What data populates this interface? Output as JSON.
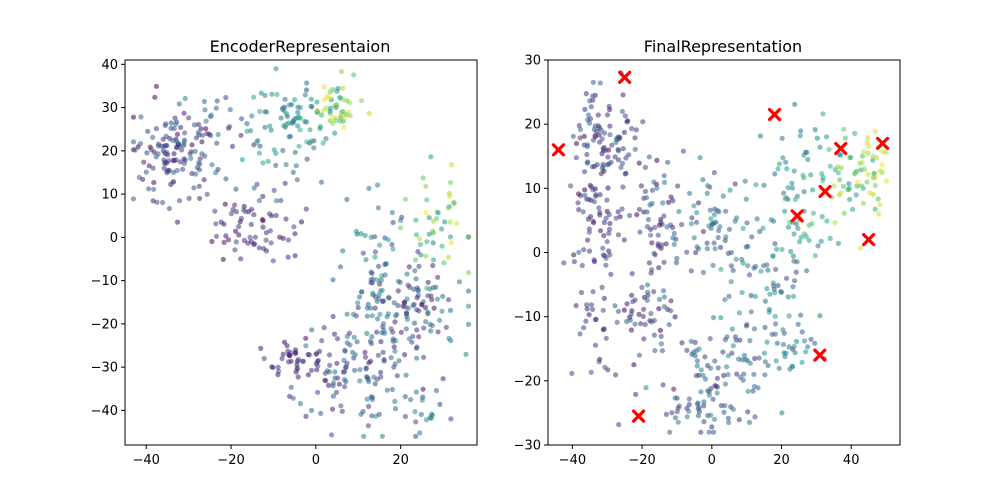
{
  "chart_data": [
    {
      "type": "scatter",
      "title": "EncoderRepresentaion",
      "xlim": [
        -45,
        38
      ],
      "ylim": [
        -48,
        41
      ],
      "xticks": [
        -40,
        -20,
        0,
        20
      ],
      "yticks": [
        -40,
        -30,
        -20,
        -10,
        0,
        10,
        20,
        30,
        40
      ],
      "grid": false,
      "colormap": "viridis",
      "color_range": [
        0,
        1
      ],
      "opacity": 0.55,
      "clusters": [
        {
          "cx": -34,
          "cy": 18,
          "sx": 5,
          "sy": 6,
          "n": 110,
          "c": [
            0.0,
            0.35
          ]
        },
        {
          "cx": -25,
          "cy": 25,
          "sx": 5,
          "sy": 4,
          "n": 40,
          "c": [
            0.1,
            0.45
          ]
        },
        {
          "cx": -15,
          "cy": 3,
          "sx": 5,
          "sy": 4,
          "n": 65,
          "c": [
            0.0,
            0.25
          ]
        },
        {
          "cx": -10,
          "cy": 22,
          "sx": 5,
          "sy": 7,
          "n": 55,
          "c": [
            0.2,
            0.65
          ]
        },
        {
          "cx": -4,
          "cy": 28,
          "sx": 4,
          "sy": 4,
          "n": 40,
          "c": [
            0.35,
            0.7
          ]
        },
        {
          "cx": 5,
          "cy": 31,
          "sx": 3,
          "sy": 3,
          "n": 45,
          "c": [
            0.5,
            1.0
          ]
        },
        {
          "cx": 20,
          "cy": -18,
          "sx": 7,
          "sy": 7,
          "n": 150,
          "c": [
            0.05,
            0.5
          ]
        },
        {
          "cx": 5,
          "cy": -32,
          "sx": 7,
          "sy": 5,
          "n": 90,
          "c": [
            0.05,
            0.45
          ]
        },
        {
          "cx": -6,
          "cy": -28,
          "sx": 3,
          "sy": 3,
          "n": 30,
          "c": [
            0.0,
            0.25
          ]
        },
        {
          "cx": 14,
          "cy": -3,
          "sx": 4,
          "sy": 6,
          "n": 40,
          "c": [
            0.2,
            0.6
          ]
        },
        {
          "cx": 28,
          "cy": 2,
          "sx": 4,
          "sy": 6,
          "n": 45,
          "c": [
            0.45,
            1.0
          ]
        },
        {
          "cx": 22,
          "cy": -40,
          "sx": 6,
          "sy": 3,
          "n": 30,
          "c": [
            0.2,
            0.55
          ]
        }
      ],
      "seed": 17,
      "markers": []
    },
    {
      "type": "scatter",
      "title": "FinalRepresentation",
      "xlim": [
        -47,
        54
      ],
      "ylim": [
        -30,
        30
      ],
      "xticks": [
        -40,
        -20,
        0,
        20,
        40
      ],
      "yticks": [
        -30,
        -20,
        -10,
        0,
        10,
        20,
        30
      ],
      "grid": false,
      "colormap": "viridis",
      "color_range": [
        0,
        1
      ],
      "opacity": 0.55,
      "clusters": [
        {
          "cx": -32,
          "cy": 18,
          "sx": 5,
          "sy": 4,
          "n": 90,
          "c": [
            0.0,
            0.35
          ]
        },
        {
          "cx": -31,
          "cy": 5,
          "sx": 6,
          "sy": 5,
          "n": 80,
          "c": [
            0.0,
            0.3
          ]
        },
        {
          "cx": -15,
          "cy": 6,
          "sx": 5,
          "sy": 5,
          "n": 55,
          "c": [
            0.0,
            0.4
          ]
        },
        {
          "cx": 2,
          "cy": 4,
          "sx": 6,
          "sy": 4,
          "n": 60,
          "c": [
            0.1,
            0.55
          ]
        },
        {
          "cx": 27,
          "cy": 10,
          "sx": 6,
          "sy": 5,
          "n": 70,
          "c": [
            0.35,
            0.75
          ]
        },
        {
          "cx": 41,
          "cy": 10,
          "sx": 4,
          "sy": 5,
          "n": 45,
          "c": [
            0.5,
            0.95
          ]
        },
        {
          "cx": 46,
          "cy": 15,
          "sx": 2,
          "sy": 2,
          "n": 20,
          "c": [
            0.8,
            1.0
          ]
        },
        {
          "cx": 16,
          "cy": -4,
          "sx": 7,
          "sy": 5,
          "n": 60,
          "c": [
            0.2,
            0.6
          ]
        },
        {
          "cx": -18,
          "cy": -10,
          "sx": 6,
          "sy": 5,
          "n": 60,
          "c": [
            0.0,
            0.4
          ]
        },
        {
          "cx": -32,
          "cy": -13,
          "sx": 3,
          "sy": 4,
          "n": 25,
          "c": [
            0.0,
            0.3
          ]
        },
        {
          "cx": 4,
          "cy": -17,
          "sx": 8,
          "sy": 4,
          "n": 75,
          "c": [
            0.1,
            0.5
          ]
        },
        {
          "cx": -4,
          "cy": -24,
          "sx": 6,
          "sy": 2,
          "n": 45,
          "c": [
            0.1,
            0.45
          ]
        },
        {
          "cx": 24,
          "cy": -15,
          "sx": 4,
          "sy": 3,
          "n": 25,
          "c": [
            0.2,
            0.55
          ]
        }
      ],
      "seed": 29,
      "markers": [
        {
          "x": -25,
          "y": 27.3
        },
        {
          "x": -44,
          "y": 16
        },
        {
          "x": 18,
          "y": 21.5
        },
        {
          "x": 37,
          "y": 16.2
        },
        {
          "x": 49,
          "y": 17
        },
        {
          "x": 32.5,
          "y": 9.5
        },
        {
          "x": 24.5,
          "y": 5.7
        },
        {
          "x": 45,
          "y": 2
        },
        {
          "x": 31,
          "y": -16
        },
        {
          "x": -21,
          "y": -25.5
        }
      ],
      "marker_color": "#ff0000"
    }
  ]
}
